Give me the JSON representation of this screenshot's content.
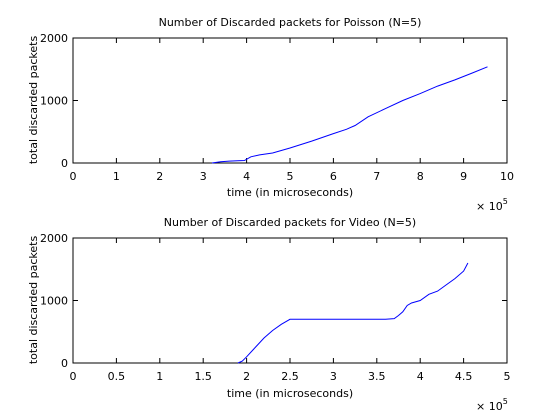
{
  "chart_data": [
    {
      "type": "line",
      "title": "Number of Discarded packets for Poisson (N=5)",
      "xlabel": "time (in microseconds)",
      "ylabel": "total discarded packets",
      "x_multiplier": {
        "base": "× 10",
        "exponent": "5"
      },
      "xlim": [
        0,
        10
      ],
      "ylim": [
        0,
        2000
      ],
      "xticks": [
        "0",
        "1",
        "2",
        "3",
        "4",
        "5",
        "6",
        "7",
        "8",
        "9",
        "10"
      ],
      "yticks": [
        "0",
        "1000",
        "2000"
      ],
      "grid": false,
      "line_color": "#0000ff",
      "series": [
        {
          "x": [
            3.2,
            3.4,
            3.6,
            3.8,
            3.95,
            4.1,
            4.3,
            4.6,
            5.0,
            5.5,
            6.0,
            6.3,
            6.5,
            6.8,
            7.2,
            7.6,
            8.0,
            8.4,
            8.8,
            9.2,
            9.55
          ],
          "y": [
            0,
            20,
            30,
            35,
            40,
            100,
            130,
            160,
            240,
            350,
            470,
            540,
            600,
            740,
            870,
            1000,
            1110,
            1230,
            1330,
            1440,
            1540
          ]
        }
      ]
    },
    {
      "type": "line",
      "title": "Number of Discarded packets for Video (N=5)",
      "xlabel": "time (in microseconds)",
      "ylabel": "total discarded packets",
      "x_multiplier": {
        "base": "× 10",
        "exponent": "5"
      },
      "xlim": [
        0,
        5
      ],
      "ylim": [
        0,
        2000
      ],
      "xticks": [
        "0",
        "0.5",
        "1",
        "1.5",
        "2",
        "2.5",
        "3",
        "3.5",
        "4",
        "4.5",
        "5"
      ],
      "yticks": [
        "0",
        "1000",
        "2000"
      ],
      "grid": false,
      "line_color": "#0000ff",
      "series": [
        {
          "x": [
            1.9,
            1.95,
            2.0,
            2.1,
            2.2,
            2.3,
            2.4,
            2.5,
            2.6,
            2.8,
            3.0,
            3.2,
            3.4,
            3.6,
            3.7,
            3.75,
            3.8,
            3.85,
            3.9,
            4.0,
            4.1,
            4.2,
            4.3,
            4.4,
            4.5,
            4.55
          ],
          "y": [
            0,
            30,
            100,
            250,
            400,
            520,
            620,
            700,
            700,
            700,
            700,
            700,
            700,
            700,
            710,
            760,
            820,
            920,
            960,
            1000,
            1100,
            1150,
            1250,
            1350,
            1470,
            1600
          ]
        }
      ]
    }
  ]
}
